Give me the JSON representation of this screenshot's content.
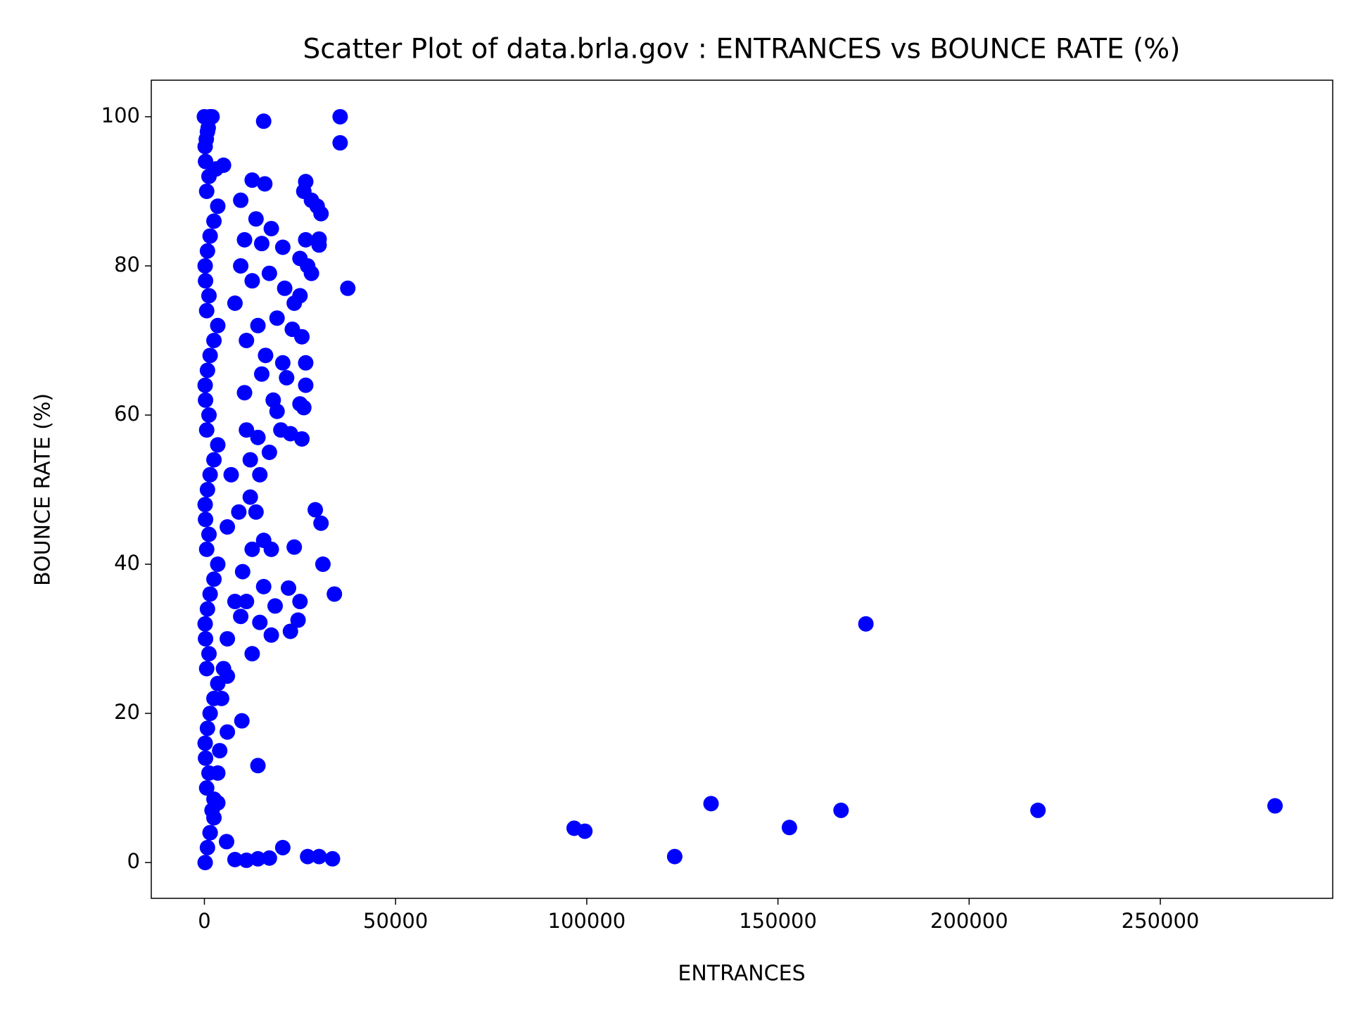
{
  "chart_data": {
    "type": "scatter",
    "title": "Scatter Plot of data.brla.gov : ENTRANCES vs BOUNCE RATE (%)",
    "x_label": "ENTRANCES",
    "y_label": "BOUNCE RATE (%)",
    "color": "#0000ff",
    "xlim": [
      -13889,
      295082
    ],
    "ylim": [
      -4.8,
      104.9
    ],
    "xticks": [
      0,
      50000,
      100000,
      150000,
      200000,
      250000
    ],
    "yticks": [
      0,
      20,
      40,
      60,
      80,
      100
    ],
    "x": [
      96700,
      99500,
      123000,
      132500,
      153000,
      166500,
      173000,
      218000,
      280000,
      35500,
      35500,
      15500,
      37500,
      34000,
      31000,
      30500,
      29000,
      23500,
      25000,
      24500,
      22500,
      22000,
      18500,
      17500,
      17500,
      15500,
      15500,
      14500,
      12500,
      12500,
      13500,
      12000,
      9800,
      14000,
      20500,
      27000,
      30000,
      33500,
      17000,
      14000,
      11000,
      8000,
      5800,
      12500,
      15800,
      26500,
      26000,
      28000,
      29500,
      30500,
      9500,
      5000,
      13500,
      17500,
      10500,
      15000,
      20500,
      26500,
      30000,
      30000,
      25000,
      27000,
      28000,
      9500,
      12500,
      17000,
      21000,
      23500,
      25000,
      8000,
      14000,
      19000,
      23000,
      25500,
      11000,
      16000,
      20500,
      26500,
      15000,
      21500,
      26500,
      10500,
      18000,
      25000,
      26000,
      19000,
      11000,
      14000,
      20000,
      22500,
      25500,
      17000,
      12000,
      14500,
      7000,
      9000,
      6000,
      10000,
      8000,
      11000,
      9500,
      6000,
      5000,
      6000,
      4500,
      6000,
      4000,
      3500,
      2500,
      2000,
      1500,
      0,
      1500,
      2000,
      500,
      1000,
      3000,
      200,
      800,
      1500,
      2500,
      3500,
      600,
      1200,
      300,
      200,
      800,
      1500,
      2500,
      3500,
      600,
      1200,
      300,
      200,
      800,
      1500,
      2500,
      3500,
      600,
      1200,
      300,
      200,
      800,
      1500,
      2500,
      3500,
      600,
      1200,
      300,
      200,
      800,
      1500,
      2500,
      3500,
      600,
      1200,
      300,
      200,
      800,
      1500,
      2500,
      3500,
      600,
      1200,
      300,
      200,
      800,
      1500
    ],
    "y": [
      4.6,
      4.2,
      0.8,
      7.9,
      4.7,
      7,
      32,
      7,
      7.6,
      100,
      96.5,
      99.4,
      77,
      36,
      40,
      45.5,
      47.3,
      42.3,
      35,
      32.5,
      31,
      36.8,
      34.4,
      30.5,
      42,
      43.2,
      37,
      32.2,
      28,
      42,
      47,
      49,
      19,
      13,
      2,
      0.8,
      0.8,
      0.5,
      0.6,
      0.5,
      0.3,
      0.4,
      2.8,
      91.5,
      91,
      91.3,
      90,
      88.8,
      88,
      87,
      88.8,
      93.5,
      86.3,
      85,
      83.5,
      83,
      82.5,
      83.5,
      83.6,
      82.8,
      81,
      80,
      79,
      80,
      78,
      79,
      77,
      75,
      76,
      75,
      72,
      73,
      71.5,
      70.5,
      70,
      68,
      67,
      67,
      65.5,
      65,
      64,
      63,
      62,
      61.5,
      61,
      60.5,
      58,
      57,
      58,
      57.5,
      56.8,
      55,
      54,
      52,
      52,
      47,
      45,
      39,
      35,
      35,
      33,
      30,
      26,
      25,
      22,
      17.5,
      15,
      12,
      8.5,
      7,
      4,
      100,
      100,
      100,
      97,
      98.5,
      93,
      0,
      2,
      4,
      6,
      8,
      10,
      12,
      14,
      16,
      18,
      20,
      22,
      24,
      26,
      28,
      30,
      32,
      34,
      36,
      38,
      40,
      42,
      44,
      46,
      48,
      50,
      52,
      54,
      56,
      58,
      60,
      62,
      64,
      66,
      68,
      70,
      72,
      74,
      76,
      78,
      80,
      82,
      84,
      86,
      88,
      90,
      92,
      94,
      96,
      98,
      100
    ]
  }
}
